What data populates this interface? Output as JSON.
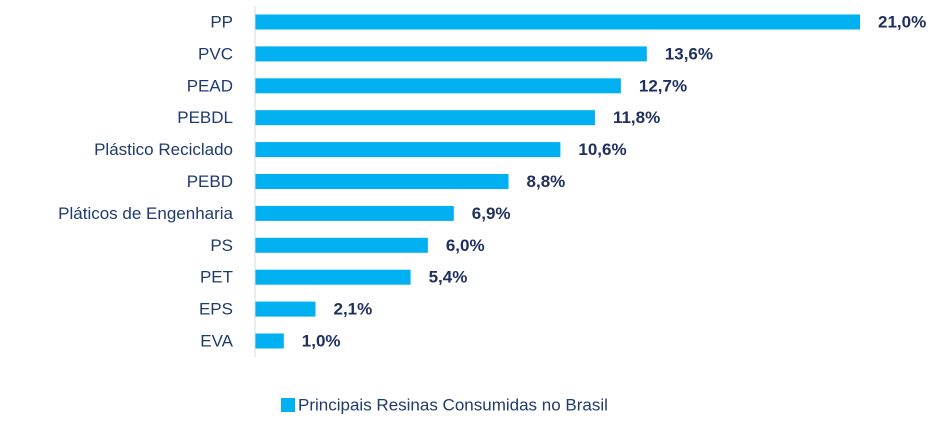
{
  "chart_data": {
    "type": "bar",
    "orientation": "horizontal",
    "categories": [
      "PP",
      "PVC",
      "PEAD",
      "PEBDL",
      "Plástico Reciclado",
      "PEBD",
      "Pláticos de Engenharia",
      "PS",
      "PET",
      "EPS",
      "EVA"
    ],
    "series": [
      {
        "name": "Principais Resinas Consumidas no Brasil",
        "color": "#00b0f0",
        "values": [
          21.0,
          13.6,
          12.7,
          11.8,
          10.6,
          8.8,
          6.9,
          6.0,
          5.4,
          2.1,
          1.0
        ],
        "value_labels": [
          "21,0%",
          "13,6%",
          "12,7%",
          "11,8%",
          "10,6%",
          "8,8%",
          "6,9%",
          "6,0%",
          "5,4%",
          "2,1%",
          "1,0%"
        ]
      }
    ],
    "legend": "bottom"
  }
}
